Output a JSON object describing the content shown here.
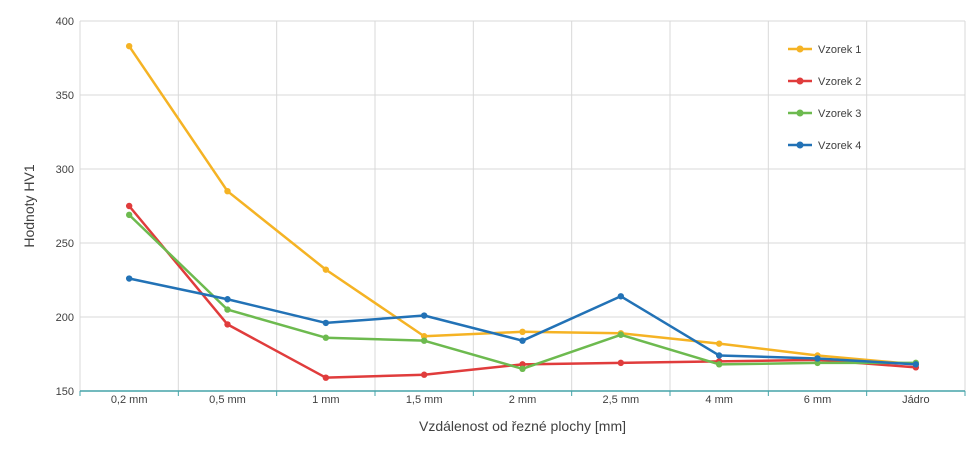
{
  "chart_data": {
    "type": "line",
    "title": "",
    "xlabel": "Vzdálenost od řezné plochy [mm]",
    "ylabel": "Hodnoty HV1",
    "ylim": [
      150,
      400
    ],
    "yticks": [
      150,
      200,
      250,
      300,
      350,
      400
    ],
    "grid": true,
    "legend_position": "top-right",
    "categories": [
      "0,2 mm",
      "0,5 mm",
      "1 mm",
      "1,5 mm",
      "2 mm",
      "2,5 mm",
      "4 mm",
      "6 mm",
      "Jádro"
    ],
    "series": [
      {
        "name": "Vzorek 1",
        "color": "#F5B324",
        "values": [
          383,
          285,
          232,
          187,
          190,
          189,
          182,
          174,
          168
        ]
      },
      {
        "name": "Vzorek 2",
        "color": "#E03C3C",
        "values": [
          275,
          195,
          159,
          161,
          168,
          169,
          170,
          171,
          166
        ]
      },
      {
        "name": "Vzorek 3",
        "color": "#6DBA4F",
        "values": [
          269,
          205,
          186,
          184,
          165,
          188,
          168,
          169,
          169
        ]
      },
      {
        "name": "Vzorek 4",
        "color": "#2272B6",
        "values": [
          226,
          212,
          196,
          201,
          184,
          214,
          174,
          172,
          168
        ]
      }
    ]
  }
}
